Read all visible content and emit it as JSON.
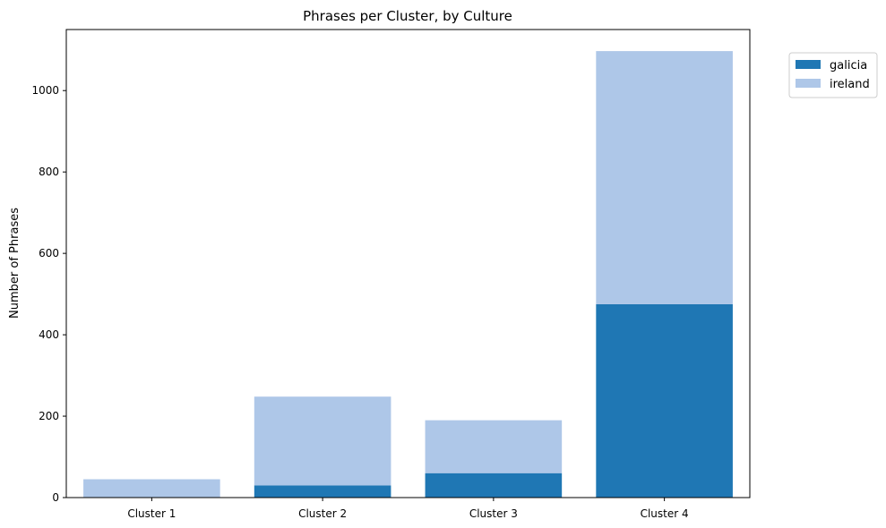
{
  "chart_data": {
    "type": "bar",
    "stacked": true,
    "title": "Phrases per Cluster, by Culture",
    "xlabel": "",
    "ylabel": "Number of Phrases",
    "categories": [
      "Cluster 1",
      "Cluster 2",
      "Cluster 3",
      "Cluster 4"
    ],
    "series": [
      {
        "name": "galicia",
        "color": "#1f77b4",
        "values": [
          0,
          30,
          60,
          475
        ]
      },
      {
        "name": "ireland",
        "color": "#aec7e8",
        "values": [
          45,
          218,
          130,
          622
        ]
      }
    ],
    "ylim": [
      0,
      1150
    ],
    "yticks": [
      0,
      200,
      400,
      600,
      800,
      1000
    ],
    "grid": false,
    "legend_position": "top-right"
  }
}
